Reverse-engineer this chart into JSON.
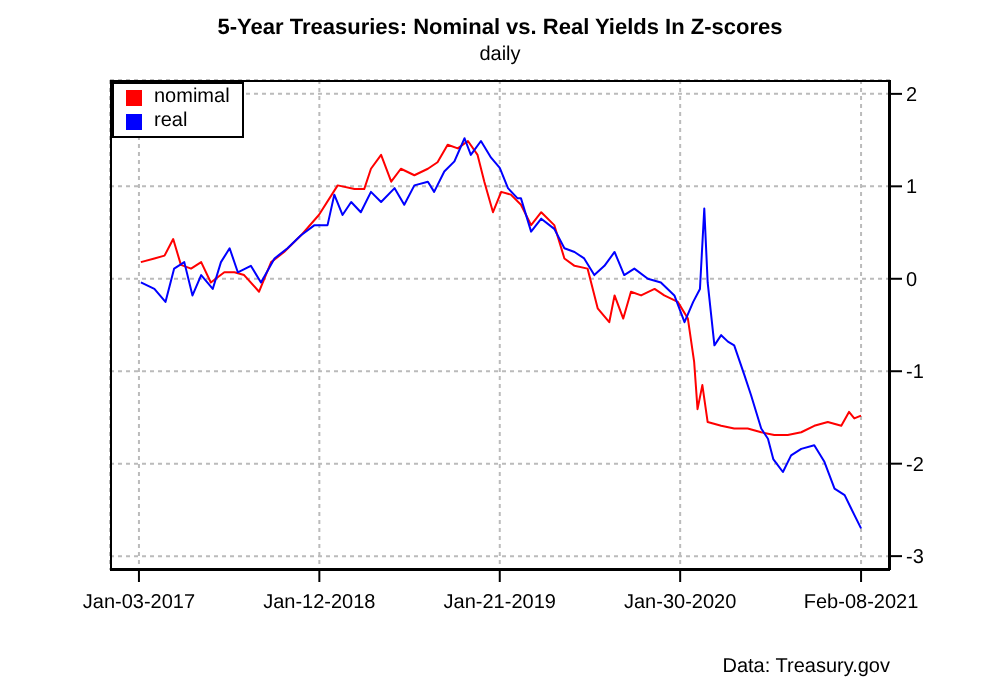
{
  "chart_data": {
    "type": "line",
    "title": "5-Year Treasuries: Nominal vs. Real Yields In Z-scores",
    "subtitle": "daily",
    "annotations": [
      "Data: Treasury.gov"
    ],
    "legend": "top left",
    "grid": true,
    "line_style": "solid",
    "xlim": [
      "2016-11-04",
      "2021-04-09"
    ],
    "xticks": [
      {
        "value": "2017-01-03",
        "label": "Jan-03-2017"
      },
      {
        "value": "2018-01-12",
        "label": "Jan-12-2018"
      },
      {
        "value": "2019-01-21",
        "label": "Jan-21-2019"
      },
      {
        "value": "2020-01-30",
        "label": "Jan-30-2020"
      },
      {
        "value": "2021-02-08",
        "label": "Feb-08-2021"
      }
    ],
    "ylim": [
      -3.15,
      2.15
    ],
    "yticks": [
      -3,
      -2,
      -1,
      0,
      1,
      2
    ],
    "series": [
      {
        "name": "nomimal",
        "color": "#ff0000",
        "x": [
          "2017-01-07",
          "2017-02-04",
          "2017-02-25",
          "2017-03-15",
          "2017-03-31",
          "2017-04-21",
          "2017-05-12",
          "2017-06-01",
          "2017-06-29",
          "2017-07-20",
          "2017-08-09",
          "2017-09-09",
          "2017-10-04",
          "2017-10-31",
          "2017-12-05",
          "2018-01-11",
          "2018-02-19",
          "2018-03-26",
          "2018-04-15",
          "2018-04-29",
          "2018-05-20",
          "2018-06-10",
          "2018-06-30",
          "2018-07-28",
          "2018-08-25",
          "2018-09-14",
          "2018-10-05",
          "2018-10-26",
          "2018-11-16",
          "2018-12-06",
          "2018-12-20",
          "2019-01-07",
          "2019-01-24",
          "2019-02-13",
          "2019-03-06",
          "2019-03-27",
          "2019-04-17",
          "2019-05-14",
          "2019-06-04",
          "2019-06-25",
          "2019-07-22",
          "2019-08-12",
          "2019-09-05",
          "2019-09-16",
          "2019-10-04",
          "2019-10-20",
          "2019-11-10",
          "2019-12-08",
          "2019-12-28",
          "2020-01-25",
          "2020-02-15",
          "2020-02-28",
          "2020-03-06",
          "2020-03-16",
          "2020-03-27",
          "2020-04-24",
          "2020-05-21",
          "2020-06-18",
          "2020-07-16",
          "2020-08-12",
          "2020-09-09",
          "2020-10-07",
          "2020-11-03",
          "2020-12-01",
          "2020-12-29",
          "2021-01-14",
          "2021-01-25",
          "2021-02-08"
        ],
        "values": [
          0.18,
          0.22,
          0.25,
          0.43,
          0.15,
          0.11,
          0.18,
          -0.04,
          0.07,
          0.07,
          0.04,
          -0.14,
          0.18,
          0.29,
          0.47,
          0.69,
          1.01,
          0.97,
          0.97,
          1.19,
          1.34,
          1.05,
          1.19,
          1.12,
          1.19,
          1.26,
          1.45,
          1.41,
          1.49,
          1.34,
          1.05,
          0.72,
          0.94,
          0.91,
          0.8,
          0.58,
          0.72,
          0.58,
          0.22,
          0.14,
          0.11,
          -0.32,
          -0.47,
          -0.18,
          -0.43,
          -0.14,
          -0.18,
          -0.11,
          -0.18,
          -0.25,
          -0.43,
          -0.9,
          -1.41,
          -1.15,
          -1.55,
          -1.59,
          -1.62,
          -1.62,
          -1.66,
          -1.69,
          -1.69,
          -1.66,
          -1.59,
          -1.55,
          -1.59,
          -1.44,
          -1.51,
          -1.48
        ]
      },
      {
        "name": "real",
        "color": "#0000ff",
        "x": [
          "2017-01-07",
          "2017-02-04",
          "2017-02-27",
          "2017-03-17",
          "2017-04-07",
          "2017-04-24",
          "2017-05-12",
          "2017-06-05",
          "2017-06-22",
          "2017-07-10",
          "2017-07-27",
          "2017-08-23",
          "2017-09-13",
          "2017-10-11",
          "2017-11-07",
          "2017-12-05",
          "2018-01-02",
          "2018-01-29",
          "2018-02-12",
          "2018-03-01",
          "2018-03-19",
          "2018-04-08",
          "2018-04-29",
          "2018-05-20",
          "2018-06-17",
          "2018-07-07",
          "2018-07-28",
          "2018-08-25",
          "2018-09-07",
          "2018-09-28",
          "2018-10-19",
          "2018-11-09",
          "2018-11-22",
          "2018-12-13",
          "2019-01-03",
          "2019-01-21",
          "2019-02-07",
          "2019-02-27",
          "2019-03-06",
          "2019-03-27",
          "2019-04-17",
          "2019-05-14",
          "2019-06-04",
          "2019-06-25",
          "2019-07-15",
          "2019-08-05",
          "2019-08-26",
          "2019-09-16",
          "2019-10-06",
          "2019-10-27",
          "2019-11-24",
          "2019-12-21",
          "2020-01-18",
          "2020-02-08",
          "2020-02-26",
          "2020-03-11",
          "2020-03-20",
          "2020-03-27",
          "2020-04-10",
          "2020-04-24",
          "2020-05-08",
          "2020-05-21",
          "2020-06-11",
          "2020-06-25",
          "2020-07-16",
          "2020-07-30",
          "2020-08-10",
          "2020-08-30",
          "2020-09-16",
          "2020-10-07",
          "2020-11-03",
          "2020-11-24",
          "2020-12-15",
          "2021-01-05",
          "2021-01-18",
          "2021-02-08"
        ],
        "values": [
          -0.04,
          -0.11,
          -0.25,
          0.11,
          0.18,
          -0.18,
          0.04,
          -0.11,
          0.18,
          0.33,
          0.07,
          0.14,
          -0.04,
          0.22,
          0.33,
          0.47,
          0.58,
          0.58,
          0.91,
          0.69,
          0.83,
          0.72,
          0.94,
          0.83,
          0.98,
          0.8,
          1.01,
          1.05,
          0.94,
          1.16,
          1.27,
          1.52,
          1.34,
          1.49,
          1.31,
          1.2,
          0.98,
          0.87,
          0.87,
          0.51,
          0.65,
          0.54,
          0.33,
          0.29,
          0.22,
          0.04,
          0.14,
          0.29,
          0.04,
          0.11,
          0.0,
          -0.04,
          -0.18,
          -0.47,
          -0.25,
          -0.11,
          0.76,
          -0.04,
          -0.72,
          -0.61,
          -0.68,
          -0.72,
          -1.04,
          -1.26,
          -1.62,
          -1.73,
          -1.95,
          -2.09,
          -1.91,
          -1.84,
          -1.8,
          -1.98,
          -2.27,
          -2.34,
          -2.48,
          -2.7
        ]
      }
    ]
  }
}
